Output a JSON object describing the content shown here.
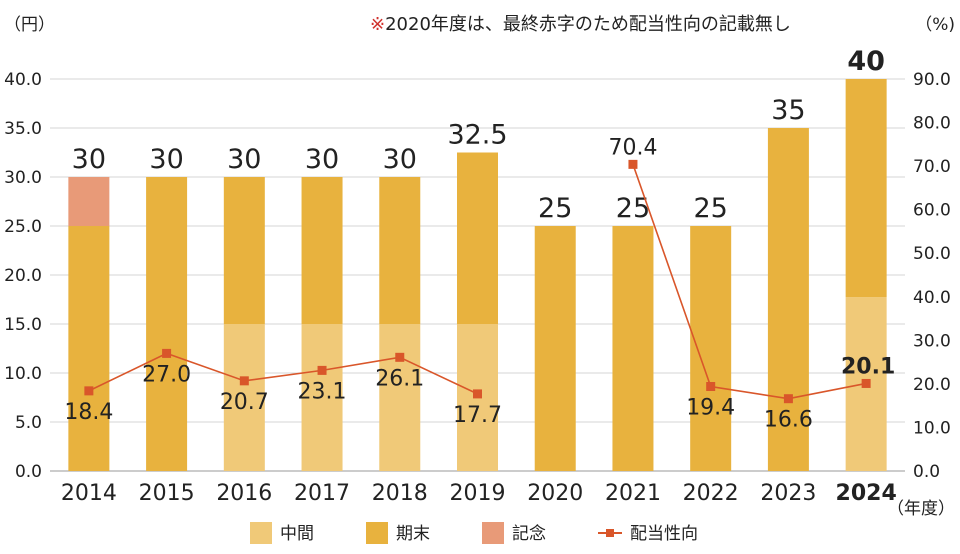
{
  "chart_data": {
    "type": "bar",
    "stacked": true,
    "left_unit": "（円）",
    "right_unit": "（%)",
    "x_unit": "（年度）",
    "note_mark": "※",
    "note_text": "2020年度は、最終赤字のため配当性向の記載無し",
    "categories": [
      "2014",
      "2015",
      "2016",
      "2017",
      "2018",
      "2019",
      "2020",
      "2021",
      "2022",
      "2023",
      "2024"
    ],
    "highlight_category": "2024",
    "y_left": {
      "min": 0,
      "max": 40,
      "ticks": [
        "0.0",
        "5.0",
        "10.0",
        "15.0",
        "20.0",
        "25.0",
        "30.0",
        "35.0",
        "40.0"
      ]
    },
    "y_right": {
      "min": 0,
      "max": 90,
      "ticks": [
        "0.0",
        "10.0",
        "20.0",
        "30.0",
        "40.0",
        "50.0",
        "60.0",
        "70.0",
        "80.0",
        "90.0"
      ]
    },
    "series": [
      {
        "name": "中間",
        "color": "#f0c978",
        "values": [
          0,
          0,
          15,
          15,
          15,
          15,
          0,
          0,
          0,
          0,
          17.75
        ]
      },
      {
        "name": "期末",
        "color": "#e8b23e",
        "values": [
          25,
          30,
          15,
          15,
          15,
          17.5,
          25,
          25,
          25,
          35,
          22.25
        ]
      },
      {
        "name": "記念",
        "color": "#e89a78",
        "values": [
          5,
          0,
          0,
          0,
          0,
          0,
          0,
          0,
          0,
          0,
          0
        ]
      }
    ],
    "totals": [
      "30",
      "30",
      "30",
      "30",
      "30",
      "32.5",
      "25",
      "25",
      "25",
      "35",
      "40"
    ],
    "payout_ratio": {
      "name": "配当性向",
      "color": "#d9562a",
      "axis": "right",
      "values": [
        18.4,
        27.0,
        20.7,
        23.1,
        26.1,
        17.7,
        null,
        70.4,
        19.4,
        16.6,
        20.1
      ],
      "labels": [
        "18.4",
        "27.0",
        "20.7",
        "23.1",
        "26.1",
        "17.7",
        "",
        "70.4",
        "19.4",
        "16.6",
        "20.1"
      ]
    },
    "grid": true,
    "legend_position": "bottom"
  }
}
